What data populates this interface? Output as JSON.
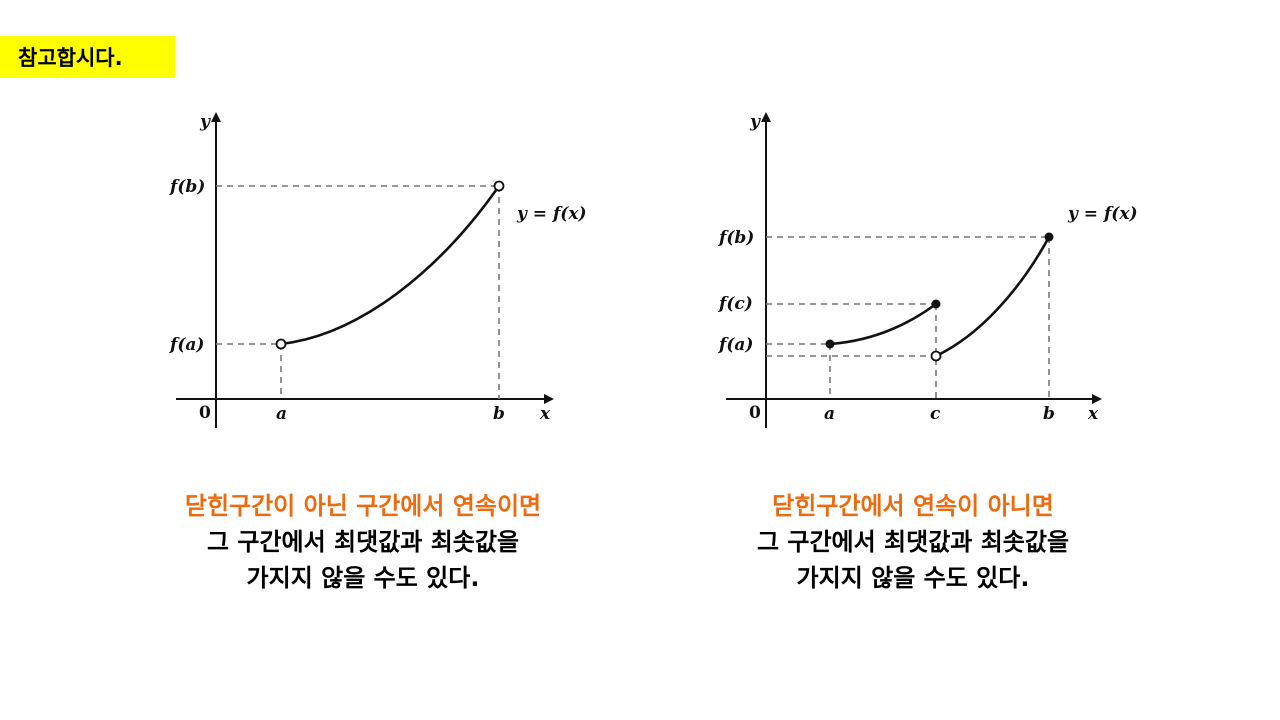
{
  "tag_label": "참고합시다.",
  "colors": {
    "tag_bg": "#FFFF00",
    "highlight": "#EE6A0E"
  },
  "graph_left": {
    "y_axis": "y",
    "x_axis": "x",
    "origin": "0",
    "fb_label": "f(b)",
    "fa_label": "f(a)",
    "a_label": "a",
    "b_label": "b",
    "curve_label": "y = f(x)"
  },
  "graph_right": {
    "y_axis": "y",
    "x_axis": "x",
    "origin": "0",
    "fb_label": "f(b)",
    "fc_label": "f(c)",
    "fa_label": "f(a)",
    "a_label": "a",
    "c_label": "c",
    "b_label": "b",
    "curve_label": "y = f(x)"
  },
  "caption_left": {
    "line1": "닫힌구간이 아닌 구간에서 연속이면",
    "line2": "그 구간에서 최댓값과 최솟값을",
    "line3": "가지지 않을 수도 있다."
  },
  "caption_right": {
    "line1": "닫힌구간에서 연속이 아니면",
    "line2": "그 구간에서 최댓값과 최솟값을",
    "line3": "가지지 않을 수도 있다."
  }
}
